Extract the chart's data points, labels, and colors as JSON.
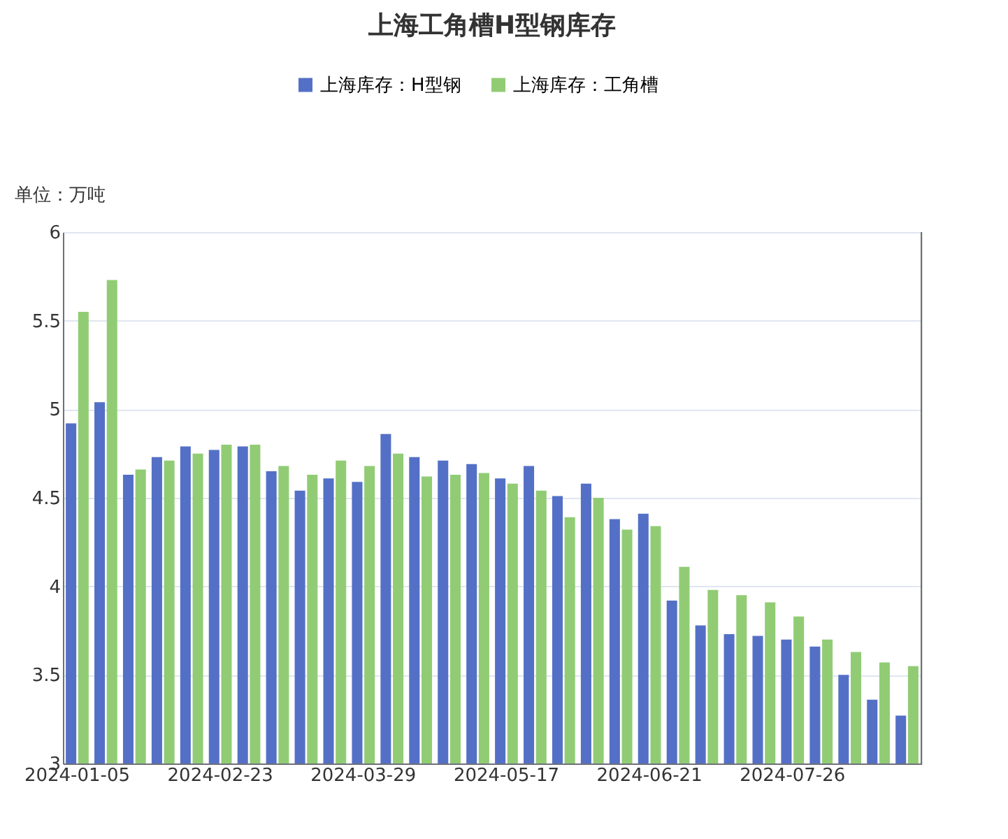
{
  "chart_data": {
    "type": "bar",
    "title": "上海工角槽H型钢库存",
    "ylabel": "单位：万吨",
    "categories": [
      "2024-01-05",
      null,
      null,
      null,
      null,
      "2024-02-23",
      null,
      null,
      null,
      null,
      "2024-03-29",
      null,
      null,
      null,
      null,
      "2024-05-17",
      null,
      null,
      null,
      null,
      "2024-06-21",
      null,
      null,
      null,
      null,
      "2024-07-26",
      null,
      null,
      null,
      null
    ],
    "series": [
      {
        "name": "上海库存：H型钢",
        "color": "#5470c6",
        "values": [
          4.92,
          5.04,
          4.63,
          4.73,
          4.79,
          4.77,
          4.79,
          4.65,
          4.54,
          4.61,
          4.59,
          4.86,
          4.73,
          4.71,
          4.69,
          4.61,
          4.68,
          4.51,
          4.58,
          4.38,
          4.41,
          3.92,
          3.78,
          3.73,
          3.72,
          3.7,
          3.66,
          3.5,
          3.36,
          3.27
        ]
      },
      {
        "name": "上海库存：工角槽",
        "color": "#91cc75",
        "values": [
          5.55,
          5.73,
          4.66,
          4.71,
          4.75,
          4.8,
          4.8,
          4.68,
          4.63,
          4.71,
          4.68,
          4.75,
          4.62,
          4.63,
          4.64,
          4.58,
          4.54,
          4.39,
          4.5,
          4.32,
          4.34,
          4.11,
          3.98,
          3.95,
          3.91,
          3.83,
          3.7,
          3.63,
          3.57,
          3.55
        ]
      }
    ],
    "ylim": [
      3,
      6
    ],
    "yticks": [
      3,
      3.5,
      4,
      4.5,
      5,
      5.5,
      6
    ],
    "grid": "y",
    "legend": "top"
  }
}
